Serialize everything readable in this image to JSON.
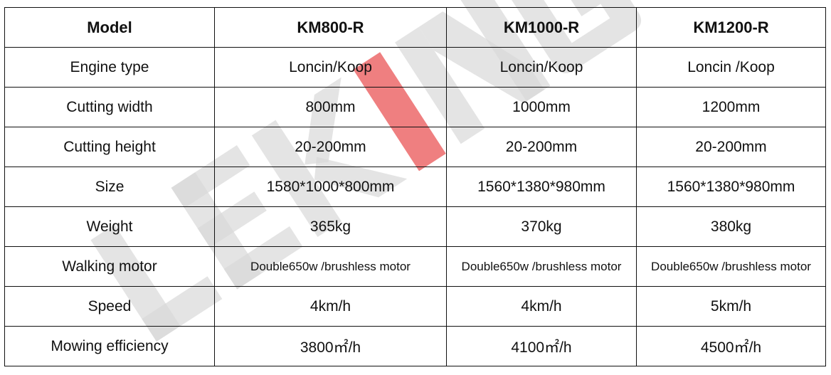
{
  "watermark": {
    "text": "LEKING",
    "color": "#d9d9d9",
    "accent_color": "#e8494a"
  },
  "table": {
    "header": [
      "Model",
      "KM800-R",
      "KM1000-R",
      "KM1200-R"
    ],
    "rows": [
      [
        "Engine type",
        "Loncin/Koop",
        "Loncin/Koop",
        "Loncin /Koop"
      ],
      [
        "Cutting width",
        "800mm",
        "1000mm",
        "1200mm"
      ],
      [
        "Cutting height",
        "20-200mm",
        "20-200mm",
        "20-200mm"
      ],
      [
        "Size",
        "1580*1000*800mm",
        "1560*1380*980mm",
        "1560*1380*980mm"
      ],
      [
        "Weight",
        "365kg",
        "370kg",
        "380kg"
      ],
      [
        "Walking motor",
        "Double650w /brushless motor",
        "Double650w /brushless motor",
        "Double650w /brushless motor"
      ],
      [
        "Speed",
        "4km/h",
        "4km/h",
        "5km/h"
      ],
      [
        "Mowing efficiency",
        "3800㎡/h",
        "4100㎡/h",
        "4500㎡/h"
      ]
    ]
  }
}
